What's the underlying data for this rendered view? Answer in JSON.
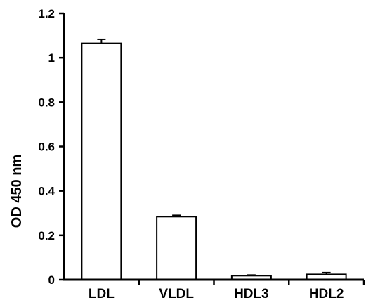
{
  "chart_data": {
    "type": "bar",
    "title": "",
    "xlabel": "",
    "ylabel": "OD 450 nm",
    "categories": [
      "LDL",
      "VLDL",
      "HDL3",
      "HDL2"
    ],
    "values": [
      1.065,
      0.284,
      0.018,
      0.024
    ],
    "errors": [
      0.018,
      0.006,
      0.003,
      0.008
    ],
    "ylim": [
      0,
      1.2
    ],
    "yticks": [
      0,
      0.2,
      0.4,
      0.6,
      0.8,
      1,
      1.2
    ],
    "ytick_labels": [
      "0",
      "0.2",
      "0.4",
      "0.6",
      "0.8",
      "1",
      "1.2"
    ],
    "grid": false,
    "legend": "none",
    "colors": {
      "bar_fill": "#ffffff",
      "bar_stroke": "#000000",
      "axis": "#000000"
    }
  }
}
